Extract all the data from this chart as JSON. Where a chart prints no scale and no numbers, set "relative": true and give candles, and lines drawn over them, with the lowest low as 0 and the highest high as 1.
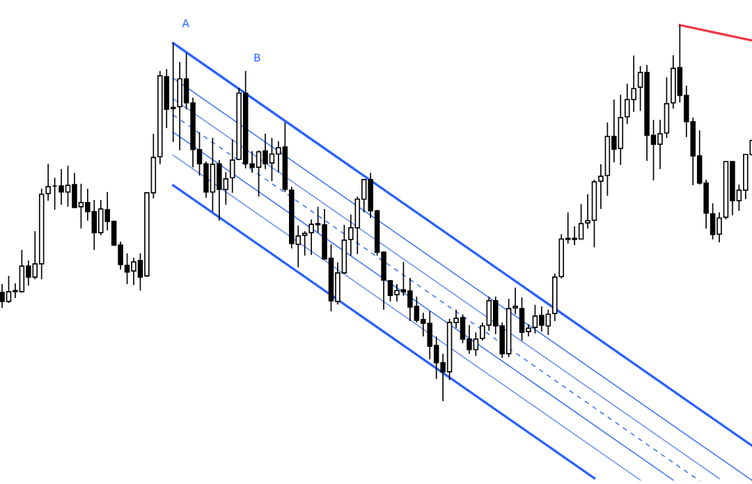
{
  "chart_data": {
    "type": "candlestick",
    "relative": true,
    "legend": false,
    "annotations": [
      "A",
      "B"
    ],
    "categories": [
      null,
      null,
      null,
      null,
      null,
      null,
      null,
      null,
      null,
      null,
      null,
      null,
      null,
      null,
      null,
      null,
      null,
      null,
      null,
      null,
      null,
      null,
      null,
      null,
      null,
      null,
      null,
      null,
      null,
      null,
      null,
      null,
      null,
      null,
      null,
      null,
      null,
      null,
      null,
      null,
      null,
      null,
      null,
      null,
      null,
      null,
      null,
      null,
      null,
      null,
      null,
      null,
      null,
      null,
      null,
      null,
      null,
      null,
      null,
      null,
      null,
      null,
      null,
      null,
      null,
      null,
      null,
      null,
      null,
      null,
      null,
      null,
      null,
      null,
      null,
      null,
      null,
      null,
      null,
      null,
      null,
      null,
      null,
      null,
      null,
      null,
      null,
      null,
      null,
      null,
      null,
      null,
      null,
      null,
      null,
      null,
      null,
      null,
      null,
      null,
      null,
      null,
      null,
      null,
      null,
      null,
      null,
      null,
      null,
      null,
      null,
      null,
      null,
      null,
      null
    ],
    "ohlc": [
      [
        0.289,
        0.311,
        0.248,
        0.265
      ],
      [
        0.265,
        0.333,
        0.261,
        0.291
      ],
      [
        0.291,
        0.313,
        0.274,
        0.294
      ],
      [
        0.291,
        0.402,
        0.289,
        0.359
      ],
      [
        0.359,
        0.374,
        0.307,
        0.33
      ],
      [
        0.33,
        0.452,
        0.324,
        0.365
      ],
      [
        0.365,
        0.565,
        0.324,
        0.55
      ],
      [
        0.552,
        0.631,
        0.533,
        0.57
      ],
      [
        0.572,
        0.594,
        0.509,
        0.572
      ],
      [
        0.572,
        0.617,
        0.522,
        0.556
      ],
      [
        0.556,
        0.626,
        0.517,
        0.574
      ],
      [
        0.576,
        0.607,
        0.513,
        0.515
      ],
      [
        0.517,
        0.578,
        0.459,
        0.528
      ],
      [
        0.528,
        0.565,
        0.48,
        0.504
      ],
      [
        0.504,
        0.535,
        0.402,
        0.448
      ],
      [
        0.448,
        0.535,
        0.441,
        0.511
      ],
      [
        0.509,
        0.556,
        0.454,
        0.478
      ],
      [
        0.478,
        0.48,
        0.413,
        0.415
      ],
      [
        0.415,
        0.424,
        0.35,
        0.363
      ],
      [
        0.361,
        0.393,
        0.311,
        0.343
      ],
      [
        0.346,
        0.381,
        0.309,
        0.37
      ],
      [
        0.374,
        0.393,
        0.294,
        0.33
      ],
      [
        0.333,
        0.556,
        0.33,
        0.554
      ],
      [
        0.554,
        0.711,
        0.539,
        0.648
      ],
      [
        0.65,
        0.878,
        0.63,
        0.865
      ],
      [
        0.863,
        0.883,
        0.726,
        0.776
      ],
      [
        0.778,
        0.952,
        0.689,
        0.781
      ],
      [
        0.783,
        0.902,
        0.667,
        0.857
      ],
      [
        0.857,
        0.926,
        0.776,
        0.793
      ],
      [
        0.793,
        0.807,
        0.622,
        0.669
      ],
      [
        0.669,
        0.715,
        0.6,
        0.631
      ],
      [
        0.631,
        0.637,
        0.541,
        0.556
      ],
      [
        0.556,
        0.7,
        0.504,
        0.63
      ],
      [
        0.631,
        0.641,
        0.48,
        0.563
      ],
      [
        0.563,
        0.609,
        0.522,
        0.591
      ],
      [
        0.594,
        0.696,
        0.554,
        0.641
      ],
      [
        0.643,
        0.833,
        0.641,
        0.819
      ],
      [
        0.819,
        0.878,
        0.619,
        0.631
      ],
      [
        0.631,
        0.665,
        0.607,
        0.622
      ],
      [
        0.622,
        0.667,
        0.544,
        0.663
      ],
      [
        0.665,
        0.711,
        0.617,
        0.631
      ],
      [
        0.633,
        0.7,
        0.585,
        0.657
      ],
      [
        0.657,
        0.691,
        0.609,
        0.674
      ],
      [
        0.676,
        0.741,
        0.556,
        0.563
      ],
      [
        0.561,
        0.57,
        0.406,
        0.419
      ],
      [
        0.417,
        0.467,
        0.356,
        0.439
      ],
      [
        0.441,
        0.452,
        0.387,
        0.446
      ],
      [
        0.448,
        0.483,
        0.389,
        0.47
      ],
      [
        0.469,
        0.517,
        0.448,
        0.472
      ],
      [
        0.469,
        0.511,
        0.378,
        0.378
      ],
      [
        0.38,
        0.417,
        0.239,
        0.267
      ],
      [
        0.265,
        0.369,
        0.257,
        0.341
      ],
      [
        0.341,
        0.469,
        0.339,
        0.428
      ],
      [
        0.43,
        0.496,
        0.387,
        0.461
      ],
      [
        0.461,
        0.544,
        0.391,
        0.537
      ],
      [
        0.537,
        0.591,
        0.502,
        0.589
      ],
      [
        0.589,
        0.607,
        0.487,
        0.506
      ],
      [
        0.506,
        0.509,
        0.387,
        0.396
      ],
      [
        0.396,
        0.398,
        0.243,
        0.322
      ],
      [
        0.32,
        0.322,
        0.265,
        0.281
      ],
      [
        0.283,
        0.311,
        0.265,
        0.294
      ],
      [
        0.296,
        0.37,
        0.28,
        0.291
      ],
      [
        0.293,
        0.328,
        0.213,
        0.25
      ],
      [
        0.252,
        0.278,
        0.209,
        0.215
      ],
      [
        0.217,
        0.235,
        0.172,
        0.207
      ],
      [
        0.207,
        0.239,
        0.111,
        0.146
      ],
      [
        0.148,
        0.172,
        0.059,
        0.102
      ],
      [
        0.102,
        0.126,
        0,
        0.078
      ],
      [
        0.078,
        0.219,
        0.056,
        0.209
      ],
      [
        0.209,
        0.243,
        0.194,
        0.22
      ],
      [
        0.222,
        0.231,
        0.154,
        0.165
      ],
      [
        0.165,
        0.202,
        0.126,
        0.137
      ],
      [
        0.137,
        0.183,
        0.12,
        0.165
      ],
      [
        0.167,
        0.209,
        0.161,
        0.2
      ],
      [
        0.202,
        0.278,
        0.187,
        0.267
      ],
      [
        0.267,
        0.278,
        0.178,
        0.2
      ],
      [
        0.2,
        0.209,
        0.115,
        0.126
      ],
      [
        0.126,
        0.272,
        0.117,
        0.246
      ],
      [
        0.248,
        0.302,
        0.231,
        0.252
      ],
      [
        0.246,
        0.276,
        0.161,
        0.183
      ],
      [
        0.185,
        0.204,
        0.172,
        0.194
      ],
      [
        0.196,
        0.256,
        0.18,
        0.226
      ],
      [
        0.228,
        0.252,
        0.185,
        0.202
      ],
      [
        0.2,
        0.243,
        0.176,
        0.231
      ],
      [
        0.233,
        0.339,
        0.213,
        0.33
      ],
      [
        0.331,
        0.444,
        0.326,
        0.431
      ],
      [
        0.43,
        0.502,
        0.419,
        0.433
      ],
      [
        0.43,
        0.465,
        0.415,
        0.433
      ],
      [
        0.431,
        0.524,
        0.43,
        0.472
      ],
      [
        0.474,
        0.55,
        0.459,
        0.48
      ],
      [
        0.481,
        0.589,
        0.409,
        0.583
      ],
      [
        0.585,
        0.63,
        0.511,
        0.598
      ],
      [
        0.6,
        0.741,
        0.546,
        0.704
      ],
      [
        0.704,
        0.802,
        0.635,
        0.67
      ],
      [
        0.672,
        0.815,
        0.628,
        0.754
      ],
      [
        0.756,
        0.844,
        0.737,
        0.802
      ],
      [
        0.802,
        0.919,
        0.769,
        0.831
      ],
      [
        0.835,
        0.891,
        0.772,
        0.874
      ],
      [
        0.874,
        0.894,
        0.639,
        0.707
      ],
      [
        0.707,
        0.748,
        0.587,
        0.683
      ],
      [
        0.683,
        0.748,
        0.617,
        0.711
      ],
      [
        0.713,
        0.861,
        0.7,
        0.791
      ],
      [
        0.793,
        0.92,
        0.778,
        0.885
      ],
      [
        0.887,
        1,
        0.794,
        0.813
      ],
      [
        0.813,
        0.839,
        0.702,
        0.743
      ],
      [
        0.743,
        0.754,
        0.574,
        0.652
      ],
      [
        0.652,
        0.72,
        0.576,
        0.58
      ],
      [
        0.58,
        0.589,
        0.459,
        0.5
      ],
      [
        0.498,
        0.526,
        0.43,
        0.443
      ],
      [
        0.444,
        0.502,
        0.422,
        0.487
      ],
      [
        0.489,
        0.639,
        0.483,
        0.637
      ],
      [
        0.637,
        0.639,
        0.494,
        0.533
      ],
      [
        0.533,
        0.576,
        0.506,
        0.561
      ],
      [
        0.561,
        0.657,
        0.537,
        0.656
      ],
      [
        0.656,
        0.696,
        0.652,
        0.693
      ]
    ],
    "series": [
      {
        "type": "line",
        "color": "#2962ff",
        "values": [
          null,
          null,
          null,
          null,
          null,
          null,
          null,
          null,
          null,
          null,
          null,
          null,
          null,
          null,
          null,
          null,
          null,
          null,
          null,
          null,
          null,
          null,
          null,
          null,
          null,
          null,
          0.952,
          null,
          null,
          null,
          null,
          null,
          null,
          null,
          null,
          null,
          null,
          null,
          null,
          null,
          null,
          null,
          null,
          null,
          null,
          null,
          null,
          null,
          null,
          null,
          null,
          null,
          null,
          null,
          null,
          null,
          null,
          null,
          null,
          null,
          null,
          null,
          null,
          null,
          null,
          null,
          null,
          null,
          null,
          null,
          null,
          null,
          null,
          null,
          null,
          null,
          null,
          null,
          null,
          null,
          null,
          null,
          null,
          null,
          null,
          null,
          null,
          null,
          null,
          null,
          null,
          null,
          null,
          null,
          null,
          null,
          null,
          null,
          null,
          null,
          null,
          null,
          null,
          null,
          null,
          null,
          null,
          null,
          null,
          null,
          null,
          null,
          null,
          null,
          -0.119
        ]
      },
      {
        "type": "line",
        "color": "#4a7bf7",
        "values": [
          null,
          null,
          null,
          null,
          null,
          null,
          null,
          null,
          null,
          null,
          null,
          null,
          null,
          null,
          null,
          null,
          null,
          null,
          null,
          null,
          null,
          null,
          null,
          null,
          null,
          null,
          0.859,
          null,
          null,
          null,
          null,
          null,
          null,
          null,
          null,
          null,
          null,
          null,
          null,
          null,
          null,
          null,
          null,
          null,
          null,
          null,
          null,
          null,
          null,
          null,
          null,
          null,
          null,
          null,
          null,
          null,
          null,
          null,
          null,
          null,
          null,
          null,
          null,
          null,
          null,
          null,
          null,
          null,
          null,
          null,
          null,
          null,
          null,
          null,
          null,
          null,
          null,
          null,
          null,
          null,
          null,
          null,
          null,
          null,
          null,
          null,
          null,
          null,
          null,
          null,
          null,
          null,
          null,
          null,
          null,
          null,
          null,
          null,
          null,
          null,
          null,
          null,
          null,
          null,
          null,
          null,
          null,
          null,
          null,
          null,
          null,
          null,
          null,
          null,
          -0.211
        ]
      },
      {
        "type": "line",
        "color": "#7396f8",
        "values": [
          null,
          null,
          null,
          null,
          null,
          null,
          null,
          null,
          null,
          null,
          null,
          null,
          null,
          null,
          null,
          null,
          null,
          null,
          null,
          null,
          null,
          null,
          null,
          null,
          null,
          null,
          0.804,
          null,
          null,
          null,
          null,
          null,
          null,
          null,
          null,
          null,
          null,
          null,
          null,
          null,
          null,
          null,
          null,
          null,
          null,
          null,
          null,
          null,
          null,
          null,
          null,
          null,
          null,
          null,
          null,
          null,
          null,
          null,
          null,
          null,
          null,
          null,
          null,
          null,
          null,
          null,
          null,
          null,
          null,
          null,
          null,
          null,
          null,
          null,
          null,
          null,
          null,
          null,
          null,
          null,
          null,
          null,
          null,
          null,
          null,
          null,
          null,
          null,
          null,
          null,
          null,
          null,
          null,
          null,
          null,
          null,
          null,
          null,
          null,
          null,
          null,
          null,
          null,
          null,
          null,
          null,
          null,
          null,
          null,
          -0.206,
          null,
          null,
          null,
          null,
          null
        ]
      },
      {
        "type": "line",
        "color": "#4a7bf7",
        "line_style": "dashed",
        "values": [
          null,
          null,
          null,
          null,
          null,
          null,
          null,
          null,
          null,
          null,
          null,
          null,
          null,
          null,
          null,
          null,
          null,
          null,
          null,
          null,
          null,
          null,
          null,
          null,
          null,
          null,
          0.761,
          null,
          null,
          null,
          null,
          null,
          null,
          null,
          null,
          null,
          null,
          null,
          null,
          null,
          null,
          null,
          null,
          null,
          null,
          null,
          null,
          null,
          null,
          null,
          null,
          null,
          null,
          null,
          null,
          null,
          null,
          null,
          null,
          null,
          null,
          null,
          null,
          null,
          null,
          null,
          null,
          null,
          null,
          null,
          null,
          null,
          null,
          null,
          null,
          null,
          null,
          null,
          null,
          null,
          null,
          null,
          null,
          null,
          null,
          null,
          null,
          null,
          null,
          null,
          null,
          null,
          null,
          null,
          null,
          null,
          null,
          null,
          null,
          null,
          null,
          null,
          null,
          null,
          null,
          null,
          -0.212,
          null,
          null,
          null,
          null,
          null,
          null,
          null,
          null
        ]
      },
      {
        "type": "line",
        "color": "#4a7bf7",
        "values": [
          null,
          null,
          null,
          null,
          null,
          null,
          null,
          null,
          null,
          null,
          null,
          null,
          null,
          null,
          null,
          null,
          null,
          null,
          null,
          null,
          null,
          null,
          null,
          null,
          null,
          null,
          0.715,
          null,
          null,
          null,
          null,
          null,
          null,
          null,
          null,
          null,
          null,
          null,
          null,
          null,
          null,
          null,
          null,
          null,
          null,
          null,
          null,
          null,
          null,
          null,
          null,
          null,
          null,
          null,
          null,
          null,
          null,
          null,
          null,
          null,
          null,
          null,
          null,
          null,
          null,
          null,
          null,
          null,
          null,
          null,
          null,
          null,
          null,
          null,
          null,
          null,
          null,
          null,
          null,
          null,
          null,
          null,
          null,
          null,
          null,
          null,
          null,
          null,
          null,
          null,
          null,
          null,
          null,
          null,
          null,
          null,
          null,
          null,
          null,
          null,
          null,
          null,
          -0.21,
          null,
          null,
          null,
          null,
          null,
          null,
          null,
          null,
          null,
          null,
          null,
          null
        ]
      },
      {
        "type": "line",
        "color": "#7396f8",
        "values": [
          null,
          null,
          null,
          null,
          null,
          null,
          null,
          null,
          null,
          null,
          null,
          null,
          null,
          null,
          null,
          null,
          null,
          null,
          null,
          null,
          null,
          null,
          null,
          null,
          null,
          null,
          0.654,
          null,
          null,
          null,
          null,
          null,
          null,
          null,
          null,
          null,
          null,
          null,
          null,
          null,
          null,
          null,
          null,
          null,
          null,
          null,
          null,
          null,
          null,
          null,
          null,
          null,
          null,
          null,
          null,
          null,
          null,
          null,
          null,
          null,
          null,
          null,
          null,
          null,
          null,
          null,
          null,
          null,
          null,
          null,
          null,
          null,
          null,
          null,
          null,
          null,
          null,
          null,
          null,
          null,
          null,
          null,
          null,
          null,
          null,
          null,
          null,
          null,
          null,
          null,
          null,
          null,
          null,
          null,
          null,
          null,
          null,
          -0.21,
          null,
          null,
          null,
          null,
          null,
          null,
          null,
          null,
          null,
          null,
          null,
          null,
          null,
          null,
          null,
          null,
          null
        ]
      },
      {
        "type": "line",
        "color": "#2962ff",
        "values": [
          null,
          null,
          null,
          null,
          null,
          null,
          null,
          null,
          null,
          null,
          null,
          null,
          null,
          null,
          null,
          null,
          null,
          null,
          null,
          null,
          null,
          null,
          null,
          null,
          null,
          null,
          0.574,
          null,
          null,
          null,
          null,
          null,
          null,
          null,
          null,
          null,
          null,
          null,
          null,
          null,
          null,
          null,
          null,
          null,
          null,
          null,
          null,
          null,
          null,
          null,
          null,
          null,
          null,
          null,
          null,
          null,
          null,
          null,
          null,
          null,
          null,
          null,
          null,
          null,
          null,
          null,
          null,
          null,
          null,
          null,
          null,
          null,
          null,
          null,
          null,
          null,
          null,
          null,
          null,
          null,
          null,
          null,
          null,
          null,
          null,
          null,
          null,
          null,
          null,
          null,
          -0.205,
          null,
          null,
          null,
          null,
          null,
          null,
          null,
          null,
          null,
          null,
          null,
          null,
          null,
          null,
          null,
          null,
          null,
          null,
          null,
          null,
          null,
          null,
          null,
          null
        ]
      },
      {
        "type": "line",
        "color": "#f23645",
        "values": [
          null,
          null,
          null,
          null,
          null,
          null,
          null,
          null,
          null,
          null,
          null,
          null,
          null,
          null,
          null,
          null,
          null,
          null,
          null,
          null,
          null,
          null,
          null,
          null,
          null,
          null,
          null,
          null,
          null,
          null,
          null,
          null,
          null,
          null,
          null,
          null,
          null,
          null,
          null,
          null,
          null,
          null,
          null,
          null,
          null,
          null,
          null,
          null,
          null,
          null,
          null,
          null,
          null,
          null,
          null,
          null,
          null,
          null,
          null,
          null,
          null,
          null,
          null,
          null,
          null,
          null,
          null,
          null,
          null,
          null,
          null,
          null,
          null,
          null,
          null,
          null,
          null,
          null,
          null,
          null,
          null,
          null,
          null,
          null,
          null,
          null,
          null,
          null,
          null,
          null,
          null,
          null,
          null,
          null,
          null,
          null,
          null,
          null,
          null,
          null,
          null,
          null,
          null,
          1,
          null,
          null,
          null,
          null,
          null,
          null,
          null,
          null,
          null,
          null,
          0.959
        ]
      }
    ]
  }
}
